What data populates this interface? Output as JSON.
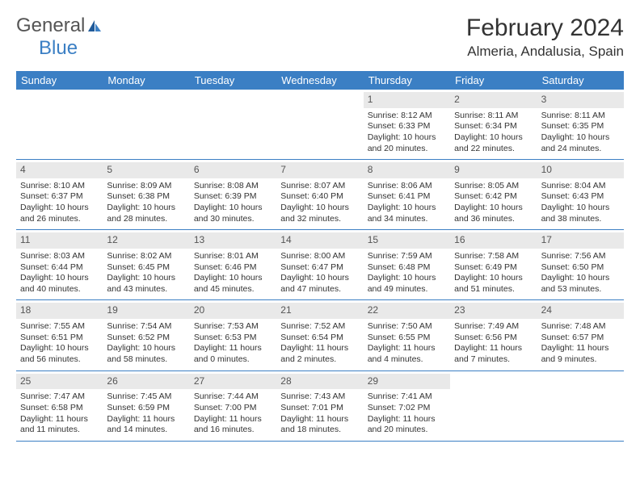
{
  "logo": {
    "part1": "General",
    "part2": "Blue"
  },
  "title": "February 2024",
  "location": "Almeria, Andalusia, Spain",
  "colors": {
    "header_bg": "#3b7fc4",
    "header_text": "#ffffff",
    "daynum_bg": "#e9e9e9",
    "text": "#333333",
    "logo_blue": "#3b7fc4",
    "logo_gray": "#555555"
  },
  "dayNames": [
    "Sunday",
    "Monday",
    "Tuesday",
    "Wednesday",
    "Thursday",
    "Friday",
    "Saturday"
  ],
  "weeks": [
    [
      null,
      null,
      null,
      null,
      {
        "n": "1",
        "sunrise": "8:12 AM",
        "sunset": "6:33 PM",
        "dl1": "Daylight: 10 hours",
        "dl2": "and 20 minutes."
      },
      {
        "n": "2",
        "sunrise": "8:11 AM",
        "sunset": "6:34 PM",
        "dl1": "Daylight: 10 hours",
        "dl2": "and 22 minutes."
      },
      {
        "n": "3",
        "sunrise": "8:11 AM",
        "sunset": "6:35 PM",
        "dl1": "Daylight: 10 hours",
        "dl2": "and 24 minutes."
      }
    ],
    [
      {
        "n": "4",
        "sunrise": "8:10 AM",
        "sunset": "6:37 PM",
        "dl1": "Daylight: 10 hours",
        "dl2": "and 26 minutes."
      },
      {
        "n": "5",
        "sunrise": "8:09 AM",
        "sunset": "6:38 PM",
        "dl1": "Daylight: 10 hours",
        "dl2": "and 28 minutes."
      },
      {
        "n": "6",
        "sunrise": "8:08 AM",
        "sunset": "6:39 PM",
        "dl1": "Daylight: 10 hours",
        "dl2": "and 30 minutes."
      },
      {
        "n": "7",
        "sunrise": "8:07 AM",
        "sunset": "6:40 PM",
        "dl1": "Daylight: 10 hours",
        "dl2": "and 32 minutes."
      },
      {
        "n": "8",
        "sunrise": "8:06 AM",
        "sunset": "6:41 PM",
        "dl1": "Daylight: 10 hours",
        "dl2": "and 34 minutes."
      },
      {
        "n": "9",
        "sunrise": "8:05 AM",
        "sunset": "6:42 PM",
        "dl1": "Daylight: 10 hours",
        "dl2": "and 36 minutes."
      },
      {
        "n": "10",
        "sunrise": "8:04 AM",
        "sunset": "6:43 PM",
        "dl1": "Daylight: 10 hours",
        "dl2": "and 38 minutes."
      }
    ],
    [
      {
        "n": "11",
        "sunrise": "8:03 AM",
        "sunset": "6:44 PM",
        "dl1": "Daylight: 10 hours",
        "dl2": "and 40 minutes."
      },
      {
        "n": "12",
        "sunrise": "8:02 AM",
        "sunset": "6:45 PM",
        "dl1": "Daylight: 10 hours",
        "dl2": "and 43 minutes."
      },
      {
        "n": "13",
        "sunrise": "8:01 AM",
        "sunset": "6:46 PM",
        "dl1": "Daylight: 10 hours",
        "dl2": "and 45 minutes."
      },
      {
        "n": "14",
        "sunrise": "8:00 AM",
        "sunset": "6:47 PM",
        "dl1": "Daylight: 10 hours",
        "dl2": "and 47 minutes."
      },
      {
        "n": "15",
        "sunrise": "7:59 AM",
        "sunset": "6:48 PM",
        "dl1": "Daylight: 10 hours",
        "dl2": "and 49 minutes."
      },
      {
        "n": "16",
        "sunrise": "7:58 AM",
        "sunset": "6:49 PM",
        "dl1": "Daylight: 10 hours",
        "dl2": "and 51 minutes."
      },
      {
        "n": "17",
        "sunrise": "7:56 AM",
        "sunset": "6:50 PM",
        "dl1": "Daylight: 10 hours",
        "dl2": "and 53 minutes."
      }
    ],
    [
      {
        "n": "18",
        "sunrise": "7:55 AM",
        "sunset": "6:51 PM",
        "dl1": "Daylight: 10 hours",
        "dl2": "and 56 minutes."
      },
      {
        "n": "19",
        "sunrise": "7:54 AM",
        "sunset": "6:52 PM",
        "dl1": "Daylight: 10 hours",
        "dl2": "and 58 minutes."
      },
      {
        "n": "20",
        "sunrise": "7:53 AM",
        "sunset": "6:53 PM",
        "dl1": "Daylight: 11 hours",
        "dl2": "and 0 minutes."
      },
      {
        "n": "21",
        "sunrise": "7:52 AM",
        "sunset": "6:54 PM",
        "dl1": "Daylight: 11 hours",
        "dl2": "and 2 minutes."
      },
      {
        "n": "22",
        "sunrise": "7:50 AM",
        "sunset": "6:55 PM",
        "dl1": "Daylight: 11 hours",
        "dl2": "and 4 minutes."
      },
      {
        "n": "23",
        "sunrise": "7:49 AM",
        "sunset": "6:56 PM",
        "dl1": "Daylight: 11 hours",
        "dl2": "and 7 minutes."
      },
      {
        "n": "24",
        "sunrise": "7:48 AM",
        "sunset": "6:57 PM",
        "dl1": "Daylight: 11 hours",
        "dl2": "and 9 minutes."
      }
    ],
    [
      {
        "n": "25",
        "sunrise": "7:47 AM",
        "sunset": "6:58 PM",
        "dl1": "Daylight: 11 hours",
        "dl2": "and 11 minutes."
      },
      {
        "n": "26",
        "sunrise": "7:45 AM",
        "sunset": "6:59 PM",
        "dl1": "Daylight: 11 hours",
        "dl2": "and 14 minutes."
      },
      {
        "n": "27",
        "sunrise": "7:44 AM",
        "sunset": "7:00 PM",
        "dl1": "Daylight: 11 hours",
        "dl2": "and 16 minutes."
      },
      {
        "n": "28",
        "sunrise": "7:43 AM",
        "sunset": "7:01 PM",
        "dl1": "Daylight: 11 hours",
        "dl2": "and 18 minutes."
      },
      {
        "n": "29",
        "sunrise": "7:41 AM",
        "sunset": "7:02 PM",
        "dl1": "Daylight: 11 hours",
        "dl2": "and 20 minutes."
      },
      null,
      null
    ]
  ],
  "labels": {
    "sunrise": "Sunrise: ",
    "sunset": "Sunset: "
  }
}
